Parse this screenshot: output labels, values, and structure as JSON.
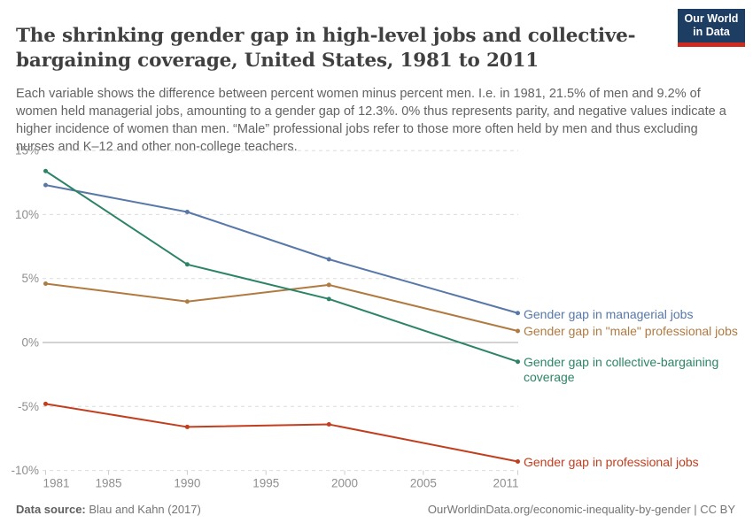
{
  "header": {
    "title": "The shrinking gender gap in high-level jobs and collective-bargaining coverage, United States, 1981 to 2011",
    "subtitle": "Each variable shows the difference between percent women minus percent men. I.e. in 1981, 21.5% of men and 9.2% of women held managerial jobs, amounting to a gender gap of 12.3%. 0% thus represents parity, and negative values indicate a higher incidence of women than men. “Male” professional jobs refer to those more often held by men and thus excluding nurses and K–12 and other non-college teachers."
  },
  "logo": {
    "line1": "Our World",
    "line2": "in Data",
    "bg_color": "#1D3D63",
    "bar_color": "#CE2A1D"
  },
  "chart_data": {
    "type": "line",
    "x": [
      1981,
      1990,
      1999,
      2011
    ],
    "series": [
      {
        "id": "managerial-jobs",
        "label": "Gender gap in managerial jobs",
        "color": "#5878A8",
        "values": [
          12.3,
          10.2,
          6.5,
          2.3
        ]
      },
      {
        "id": "male-professional-jobs",
        "label": "Gender gap in \"male\" professional jobs",
        "color": "#B07A41",
        "values": [
          4.6,
          3.2,
          4.5,
          0.9
        ]
      },
      {
        "id": "collective-bargaining-coverage",
        "label": "Gender gap in collective-bargaining coverage",
        "color": "#2C8465",
        "values": [
          13.4,
          6.1,
          3.4,
          -1.5
        ]
      },
      {
        "id": "professional-jobs",
        "label": "Gender gap in professional jobs",
        "color": "#C23E1E",
        "values": [
          -4.8,
          -6.6,
          -6.4,
          -9.3
        ]
      }
    ],
    "x_ticks": [
      1981,
      1985,
      1990,
      1995,
      2000,
      2005,
      2011
    ],
    "y_ticks": [
      15,
      10,
      5,
      0,
      -5,
      -10
    ],
    "y_tick_suffix": "%",
    "xlim": [
      1981,
      2011
    ],
    "ylim": [
      -10,
      15
    ],
    "grid": true,
    "legend_position": "right-of-line-ends"
  },
  "footer": {
    "source_label": "Data source:",
    "source_value": " Blau and Kahn (2017)",
    "credit": "OurWorldinData.org/economic-inequality-by-gender | CC BY"
  }
}
